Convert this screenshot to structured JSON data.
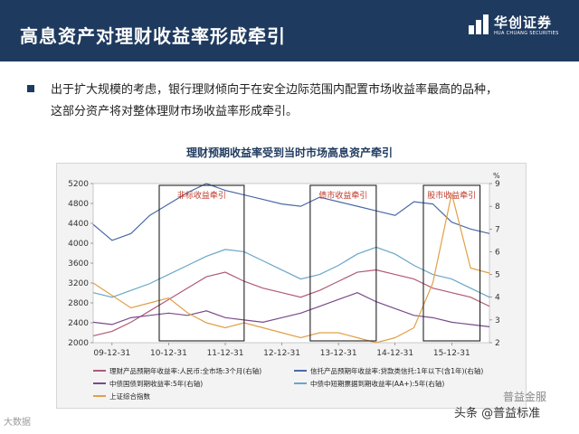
{
  "header": {
    "title": "高息资产对理财收益率形成牵引"
  },
  "logo": {
    "cn": "华创证券",
    "en": "HUA CHUANG SECURITIES"
  },
  "bullet": {
    "line1": "出于扩大规模的考虑，银行理财倾向于在安全边际范围内配置市场收益率最高的品种，",
    "line2": "这部分资产将对整体理财市场收益率形成牵引。"
  },
  "chart_data": {
    "type": "line",
    "title": "理财预期收益率受到当时市场高息资产牵引",
    "left_ticks": [
      "5200",
      "4800",
      "4400",
      "4000",
      "3600",
      "3200",
      "2800",
      "2400",
      "2000"
    ],
    "right_ticks": [
      "9",
      "8",
      "7",
      "6",
      "5",
      "4",
      "3",
      "2"
    ],
    "right_unit": "%",
    "x_ticks": [
      "09-12-31",
      "10-12-31",
      "11-12-31",
      "12-12-31",
      "13-12-31",
      "14-12-31",
      "15-12-31"
    ],
    "boxes": [
      {
        "label": "非标收益牵引"
      },
      {
        "label": "债市收益牵引"
      },
      {
        "label": "股市收益牵引"
      }
    ],
    "series": [
      {
        "name": "理财产品预期年收益率:人民币:全市场:3个月(右轴)",
        "color": "#b05a78",
        "axis": "right",
        "values": [
          2.3,
          2.5,
          2.9,
          3.4,
          3.9,
          4.4,
          4.9,
          5.1,
          4.7,
          4.4,
          4.2,
          4.0,
          4.3,
          4.7,
          5.1,
          5.2,
          5.0,
          4.8,
          4.4,
          4.2,
          4.0,
          3.6
        ]
      },
      {
        "name": "信托产品预期年收益率:贷款类信托:1年以下(含1年)(右轴)",
        "color": "#4a6aa8",
        "axis": "right",
        "values": [
          7.2,
          6.5,
          6.8,
          7.6,
          8.1,
          8.6,
          9.0,
          8.7,
          8.5,
          8.3,
          8.1,
          8.0,
          8.4,
          8.2,
          8.0,
          7.8,
          7.6,
          8.2,
          8.1,
          7.3,
          7.0,
          6.8
        ]
      },
      {
        "name": "中债国债到期收益率:5年(右轴)",
        "color": "#7a4a8a",
        "axis": "right",
        "values": [
          2.9,
          2.8,
          3.1,
          3.2,
          3.3,
          3.2,
          3.4,
          3.1,
          3.0,
          2.9,
          3.1,
          3.3,
          3.6,
          3.9,
          4.2,
          3.8,
          3.5,
          3.2,
          3.1,
          2.9,
          2.8,
          2.7
        ]
      },
      {
        "name": "中债中短期票据到期收益率(AA+):5年(右轴)",
        "color": "#6aa6c8",
        "axis": "right",
        "values": [
          4.2,
          4.0,
          4.3,
          4.6,
          5.0,
          5.4,
          5.8,
          6.1,
          6.0,
          5.6,
          5.2,
          4.8,
          5.0,
          5.4,
          5.9,
          6.2,
          5.9,
          5.4,
          5.0,
          4.8,
          4.4,
          4.0
        ]
      },
      {
        "name": "上证综合指数",
        "color": "#e0a048",
        "axis": "left",
        "values": [
          3200,
          2950,
          2700,
          2800,
          2900,
          2600,
          2400,
          2300,
          2400,
          2300,
          2200,
          2100,
          2200,
          2200,
          2100,
          2000,
          2100,
          2300,
          3200,
          5000,
          3500,
          3400
        ]
      }
    ]
  },
  "watermarks": {
    "left": "大数据",
    "right": "头条 @普益标准",
    "right2": "普益金服"
  }
}
